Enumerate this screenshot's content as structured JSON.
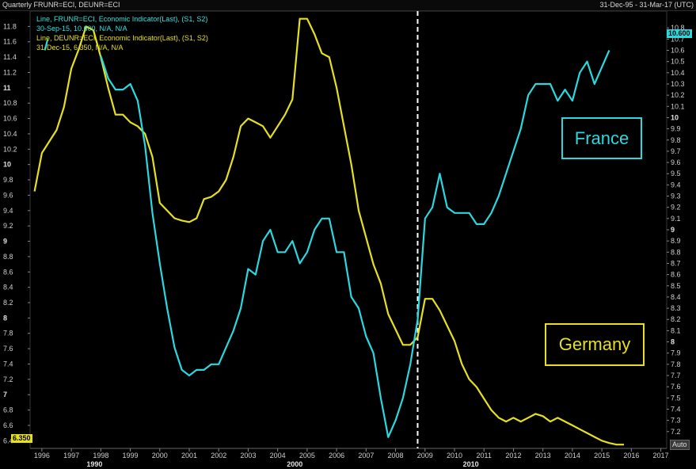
{
  "header": {
    "title": "Quarterly FRUNR=ECI, DEUNR=ECI",
    "range": "31-Dec-95 - 31-Mar-17 (UTC)"
  },
  "legend": {
    "fr_line1": "Line, FRUNR=ECI, Economic Indicator(Last), (S1, S2)",
    "fr_line2": "30-Sep-15, 10.600, N/A, N/A",
    "de_line1": "Line, DEUNR=ECI, Economic Indicator(Last), (S1, S2)",
    "de_line2": "31-Dec-15, 6.350, N/A, N/A"
  },
  "labels": {
    "france": "France",
    "germany": "Germany",
    "fr_last": "10.600",
    "de_last": "6.350",
    "auto": "Auto"
  },
  "colors": {
    "france": "#2ad8e0",
    "germany": "#e6e020",
    "background": "#000000",
    "divider": "#ffffff"
  },
  "chart_data": {
    "type": "line",
    "title": "Quarterly FRUNR=ECI, DEUNR=ECI",
    "x_tick_labels": [
      "1996",
      "1997",
      "1998",
      "1999",
      "2000",
      "2001",
      "2002",
      "2003",
      "2004",
      "2005",
      "2006",
      "2007",
      "2008",
      "2009",
      "2010",
      "2011",
      "2012",
      "2013",
      "2014",
      "2015",
      "2016",
      "2017"
    ],
    "decade_labels": [
      {
        "x": 1990,
        "label": "1990"
      },
      {
        "x": 2000,
        "label": "2000"
      },
      {
        "x": 2010,
        "label": "2010"
      }
    ],
    "xlim": [
      1995.6,
      2017.2
    ],
    "left_axis": {
      "ylim": [
        6.3,
        12.0
      ],
      "ticks": [
        6.4,
        6.6,
        6.8,
        7,
        7.2,
        7.4,
        7.6,
        7.8,
        8,
        8.2,
        8.4,
        8.6,
        8.8,
        9,
        9.2,
        9.4,
        9.6,
        9.8,
        10,
        10.2,
        10.4,
        10.6,
        10.8,
        11,
        11.2,
        11.4,
        11.6,
        11.8
      ],
      "bold_ticks": [
        7,
        8,
        9,
        10,
        11
      ]
    },
    "right_axis": {
      "ylim": [
        7.05,
        10.95
      ],
      "ticks": [
        7.2,
        7.3,
        7.4,
        7.5,
        7.6,
        7.7,
        7.8,
        7.9,
        8,
        8.1,
        8.2,
        8.3,
        8.4,
        8.5,
        8.6,
        8.7,
        8.8,
        8.9,
        9,
        9.1,
        9.2,
        9.3,
        9.4,
        9.5,
        9.6,
        9.7,
        9.8,
        9.9,
        10,
        10.1,
        10.2,
        10.3,
        10.4,
        10.5,
        10.6,
        10.7,
        10.8
      ],
      "bold_ticks": [
        8,
        9,
        10
      ]
    },
    "vertical_marker": 2008.75,
    "series": [
      {
        "name": "DEUNR=ECI",
        "axis": "left",
        "points": [
          [
            1995.75,
            9.65
          ],
          [
            1996.0,
            10.15
          ],
          [
            1996.25,
            10.3
          ],
          [
            1996.5,
            10.45
          ],
          [
            1996.75,
            10.75
          ],
          [
            1997.0,
            11.25
          ],
          [
            1997.25,
            11.5
          ],
          [
            1997.5,
            11.8
          ],
          [
            1997.75,
            11.75
          ],
          [
            1998.0,
            11.4
          ],
          [
            1998.25,
            11.0
          ],
          [
            1998.5,
            10.65
          ],
          [
            1998.75,
            10.65
          ],
          [
            1999.0,
            10.55
          ],
          [
            1999.25,
            10.5
          ],
          [
            1999.5,
            10.4
          ],
          [
            1999.75,
            10.1
          ],
          [
            2000.0,
            9.5
          ],
          [
            2000.25,
            9.4
          ],
          [
            2000.5,
            9.3
          ],
          [
            2000.75,
            9.27
          ],
          [
            2001.0,
            9.25
          ],
          [
            2001.25,
            9.3
          ],
          [
            2001.5,
            9.55
          ],
          [
            2001.75,
            9.58
          ],
          [
            2002.0,
            9.65
          ],
          [
            2002.25,
            9.8
          ],
          [
            2002.5,
            10.1
          ],
          [
            2002.75,
            10.5
          ],
          [
            2003.0,
            10.6
          ],
          [
            2003.25,
            10.55
          ],
          [
            2003.5,
            10.5
          ],
          [
            2003.75,
            10.35
          ],
          [
            2004.0,
            10.5
          ],
          [
            2004.25,
            10.65
          ],
          [
            2004.5,
            10.85
          ],
          [
            2004.75,
            11.9
          ],
          [
            2005.0,
            11.9
          ],
          [
            2005.25,
            11.7
          ],
          [
            2005.5,
            11.45
          ],
          [
            2005.75,
            11.4
          ],
          [
            2006.0,
            11.0
          ],
          [
            2006.25,
            10.5
          ],
          [
            2006.5,
            10.0
          ],
          [
            2006.75,
            9.4
          ],
          [
            2007.0,
            9.05
          ],
          [
            2007.25,
            8.7
          ],
          [
            2007.5,
            8.45
          ],
          [
            2007.75,
            8.05
          ],
          [
            2008.0,
            7.85
          ],
          [
            2008.25,
            7.65
          ],
          [
            2008.5,
            7.65
          ],
          [
            2008.75,
            7.75
          ],
          [
            2009.0,
            8.25
          ],
          [
            2009.25,
            8.25
          ],
          [
            2009.5,
            8.1
          ],
          [
            2009.75,
            7.9
          ],
          [
            2010.0,
            7.7
          ],
          [
            2010.25,
            7.4
          ],
          [
            2010.5,
            7.2
          ],
          [
            2010.75,
            7.1
          ],
          [
            2011.0,
            6.95
          ],
          [
            2011.25,
            6.8
          ],
          [
            2011.5,
            6.7
          ],
          [
            2011.75,
            6.65
          ],
          [
            2012.0,
            6.7
          ],
          [
            2012.25,
            6.65
          ],
          [
            2012.5,
            6.7
          ],
          [
            2012.75,
            6.75
          ],
          [
            2013.0,
            6.72
          ],
          [
            2013.25,
            6.65
          ],
          [
            2013.5,
            6.7
          ],
          [
            2013.75,
            6.65
          ],
          [
            2014.0,
            6.6
          ],
          [
            2014.25,
            6.55
          ],
          [
            2014.5,
            6.5
          ],
          [
            2014.75,
            6.45
          ],
          [
            2015.0,
            6.4
          ],
          [
            2015.25,
            6.37
          ],
          [
            2015.5,
            6.35
          ],
          [
            2015.75,
            6.35
          ]
        ]
      },
      {
        "name": "FRUNR=ECI",
        "axis": "right",
        "points": [
          [
            1996.1,
            10.6
          ],
          [
            1996.2,
            10.7
          ],
          [
            1998.0,
            10.55
          ],
          [
            1998.25,
            10.35
          ],
          [
            1998.5,
            10.25
          ],
          [
            1998.75,
            10.25
          ],
          [
            1999.0,
            10.3
          ],
          [
            1999.25,
            10.15
          ],
          [
            1999.5,
            9.75
          ],
          [
            1999.75,
            9.15
          ],
          [
            2000.0,
            8.7
          ],
          [
            2000.25,
            8.3
          ],
          [
            2000.5,
            7.95
          ],
          [
            2000.75,
            7.75
          ],
          [
            2001.0,
            7.7
          ],
          [
            2001.25,
            7.75
          ],
          [
            2001.5,
            7.75
          ],
          [
            2001.75,
            7.8
          ],
          [
            2002.0,
            7.8
          ],
          [
            2002.25,
            7.95
          ],
          [
            2002.5,
            8.1
          ],
          [
            2002.75,
            8.3
          ],
          [
            2003.0,
            8.65
          ],
          [
            2003.25,
            8.6
          ],
          [
            2003.5,
            8.9
          ],
          [
            2003.75,
            9.0
          ],
          [
            2004.0,
            8.8
          ],
          [
            2004.25,
            8.8
          ],
          [
            2004.5,
            8.9
          ],
          [
            2004.75,
            8.7
          ],
          [
            2005.0,
            8.8
          ],
          [
            2005.25,
            9.0
          ],
          [
            2005.5,
            9.1
          ],
          [
            2005.75,
            9.1
          ],
          [
            2006.0,
            8.8
          ],
          [
            2006.25,
            8.8
          ],
          [
            2006.5,
            8.4
          ],
          [
            2006.75,
            8.3
          ],
          [
            2007.0,
            8.05
          ],
          [
            2007.25,
            7.9
          ],
          [
            2007.5,
            7.5
          ],
          [
            2007.75,
            7.15
          ],
          [
            2008.0,
            7.3
          ],
          [
            2008.25,
            7.5
          ],
          [
            2008.5,
            7.8
          ],
          [
            2008.75,
            8.2
          ],
          [
            2009.0,
            9.1
          ],
          [
            2009.25,
            9.2
          ],
          [
            2009.5,
            9.5
          ],
          [
            2009.75,
            9.2
          ],
          [
            2010.0,
            9.15
          ],
          [
            2010.25,
            9.15
          ],
          [
            2010.5,
            9.15
          ],
          [
            2010.75,
            9.05
          ],
          [
            2011.0,
            9.05
          ],
          [
            2011.25,
            9.15
          ],
          [
            2011.5,
            9.3
          ],
          [
            2011.75,
            9.5
          ],
          [
            2012.0,
            9.7
          ],
          [
            2012.25,
            9.9
          ],
          [
            2012.5,
            10.2
          ],
          [
            2012.75,
            10.3
          ],
          [
            2013.0,
            10.3
          ],
          [
            2013.25,
            10.3
          ],
          [
            2013.5,
            10.15
          ],
          [
            2013.75,
            10.25
          ],
          [
            2014.0,
            10.15
          ],
          [
            2014.25,
            10.4
          ],
          [
            2014.5,
            10.5
          ],
          [
            2014.75,
            10.3
          ],
          [
            2015.0,
            10.45
          ],
          [
            2015.25,
            10.6
          ]
        ]
      }
    ]
  }
}
